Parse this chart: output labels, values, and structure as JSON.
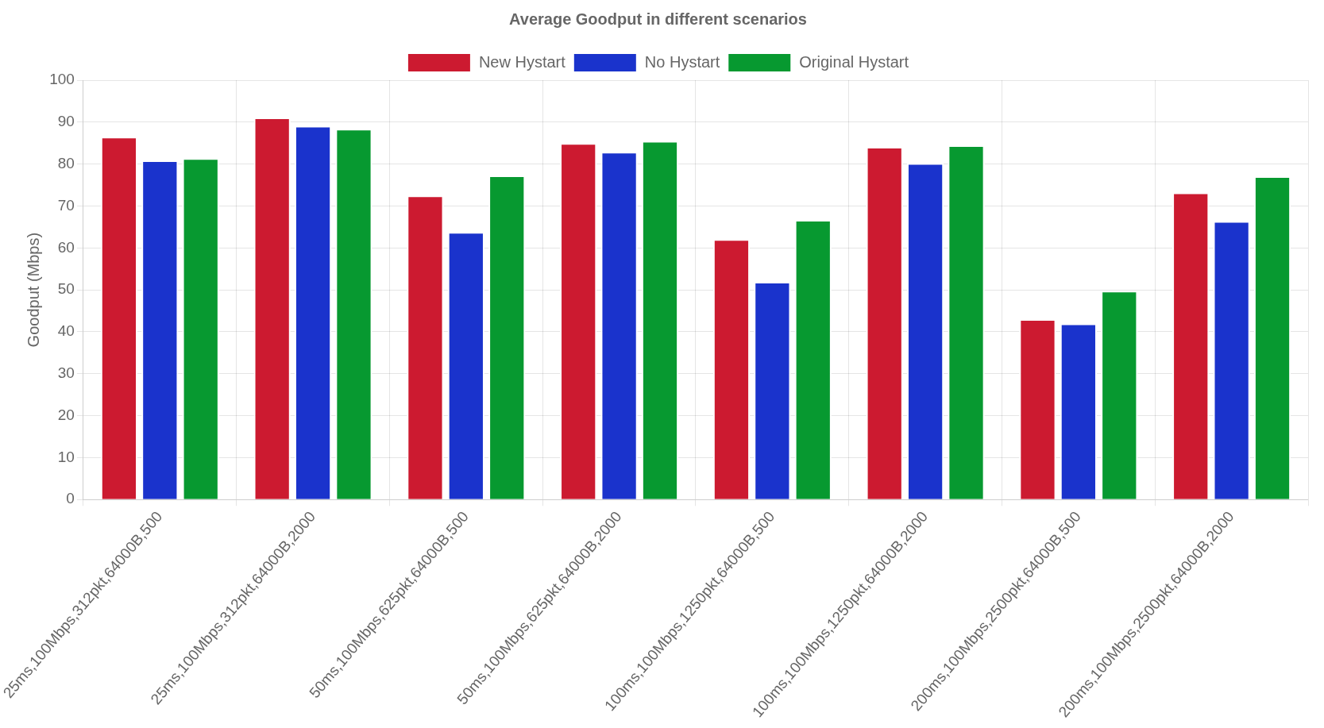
{
  "chart_data": {
    "type": "bar",
    "title": "Average Goodput in different scenarios",
    "ylabel": "Goodput (Mbps)",
    "categories": [
      "25ms,100Mbps,312pkt,64000B,500",
      "25ms,100Mbps,312pkt,64000B,2000",
      "50ms,100Mbps,625pkt,64000B,500",
      "50ms,100Mbps,625pkt,64000B,2000",
      "100ms,100Mbps,1250pkt,64000B,500",
      "100ms,100Mbps,1250pkt,64000B,2000",
      "200ms,100Mbps,2500pkt,64000B,500",
      "200ms,100Mbps,2500pkt,64000B,2000"
    ],
    "series": [
      {
        "name": "New Hystart",
        "color": "#cc1a30",
        "values": [
          86.5,
          91.1,
          72.5,
          85.0,
          62.1,
          84.1,
          43.0,
          73.2
        ]
      },
      {
        "name": "No Hystart",
        "color": "#1a33cc",
        "values": [
          80.9,
          89.1,
          63.8,
          82.9,
          51.9,
          80.2,
          42.0,
          66.4
        ]
      },
      {
        "name": "Original Hystart",
        "color": "#079930",
        "values": [
          81.4,
          88.4,
          77.3,
          85.5,
          66.7,
          84.5,
          49.8,
          77.1
        ]
      }
    ],
    "ylim": [
      0,
      100
    ],
    "yticks": [
      0,
      10,
      20,
      30,
      40,
      50,
      60,
      70,
      80,
      90,
      100
    ],
    "grid": true,
    "legend": "top"
  }
}
